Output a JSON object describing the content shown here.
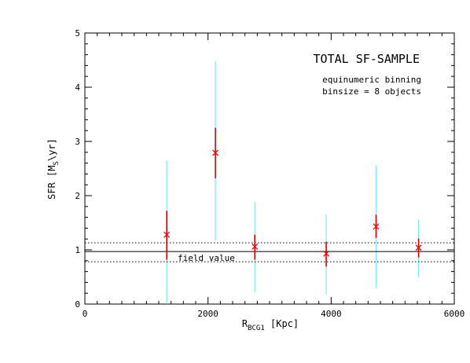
{
  "chart_data": {
    "type": "scatter",
    "title": "TOTAL SF-SAMPLE",
    "annotations": {
      "line1": "equinumeric binning",
      "line2": "binsize = 8 objects",
      "field_label": "field value"
    },
    "xlabel": {
      "main": "R",
      "sub": "BCG1",
      "unit": " [Kpc]"
    },
    "ylabel": {
      "main": "SFR [M",
      "sub": "S",
      "unit": "\\yr]"
    },
    "xlim": [
      0,
      6000
    ],
    "ylim": [
      0,
      5
    ],
    "x_ticks": [
      0,
      2000,
      4000,
      6000
    ],
    "x_minor_step": 200,
    "y_ticks": [
      0,
      1,
      2,
      3,
      4,
      5
    ],
    "y_minor_step": 0.2,
    "grid": false,
    "field_value": {
      "value": 0.97,
      "lower": 0.78,
      "upper": 1.13
    },
    "points": [
      {
        "x": 1330,
        "y": 1.28,
        "err_lo": 0.82,
        "err_hi": 1.72,
        "scatter_lo": 0.02,
        "scatter_hi": 2.65
      },
      {
        "x": 2120,
        "y": 2.79,
        "err_lo": 2.32,
        "err_hi": 3.25,
        "scatter_lo": 1.17,
        "scatter_hi": 4.48
      },
      {
        "x": 2760,
        "y": 1.06,
        "err_lo": 0.82,
        "err_hi": 1.28,
        "scatter_lo": 0.22,
        "scatter_hi": 1.88
      },
      {
        "x": 3920,
        "y": 0.93,
        "err_lo": 0.69,
        "err_hi": 1.15,
        "scatter_lo": 0.18,
        "scatter_hi": 1.65
      },
      {
        "x": 4730,
        "y": 1.43,
        "err_lo": 1.22,
        "err_hi": 1.65,
        "scatter_lo": 0.3,
        "scatter_hi": 2.56
      },
      {
        "x": 5420,
        "y": 1.04,
        "err_lo": 0.86,
        "err_hi": 1.21,
        "scatter_lo": 0.49,
        "scatter_hi": 1.56
      }
    ],
    "colors": {
      "marker": "#ff0000",
      "error_bar": "#d40000",
      "scatter_bar": "#7fe8f0",
      "field_line": "#000000"
    }
  }
}
